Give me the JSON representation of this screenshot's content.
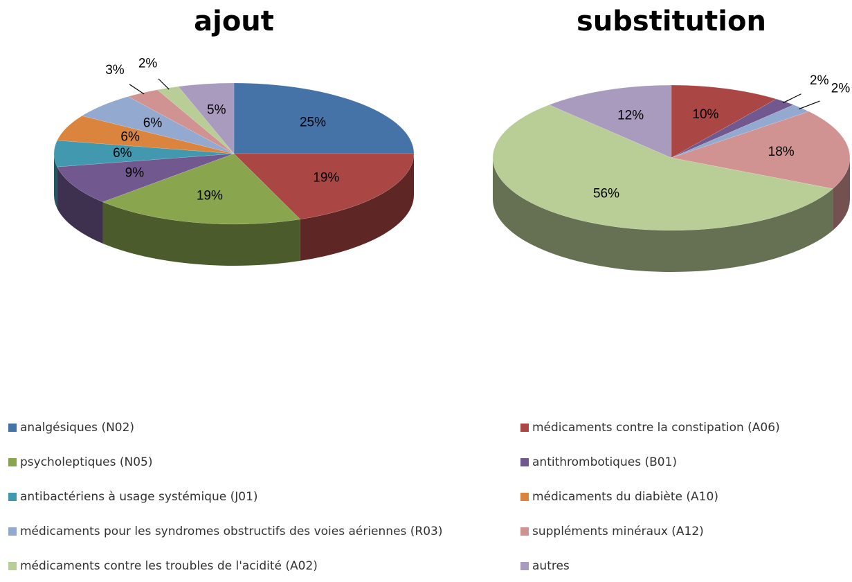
{
  "chart_data": [
    {
      "type": "pie",
      "title": "ajout",
      "categories": [
        "analgésiques (N02)",
        "médicaments contre la constipation (A06)",
        "psycholeptiques (N05)",
        "antithrombotiques (B01)",
        "antibactériens à usage systémique (J01)",
        "médicaments du diabiète (A10)",
        "médicaments pour les syndromes obstructifs des voies aériennes (R03)",
        "suppléments minéraux (A12)",
        "médicaments contre les troubles de l'acidité (A02)",
        "autres"
      ],
      "colors": [
        "#4572a7",
        "#aa4643",
        "#89a54e",
        "#71588f",
        "#4198af",
        "#db843d",
        "#93a9cf",
        "#d19392",
        "#b9cd96",
        "#a99bbd"
      ],
      "values": [
        25,
        19,
        19,
        9,
        6,
        6,
        6,
        3,
        2,
        5
      ],
      "value_labels": [
        "25%",
        "19%",
        "19%",
        "9%",
        "6%",
        "6%",
        "6%",
        "3%",
        "2%",
        "5%"
      ]
    },
    {
      "type": "pie",
      "title": "substitution",
      "values": [
        null,
        10,
        null,
        2,
        null,
        null,
        2,
        18,
        56,
        12
      ],
      "value_labels": [
        null,
        "10%",
        null,
        "2%",
        null,
        null,
        "2%",
        "18%",
        "56%",
        "12%"
      ]
    }
  ]
}
